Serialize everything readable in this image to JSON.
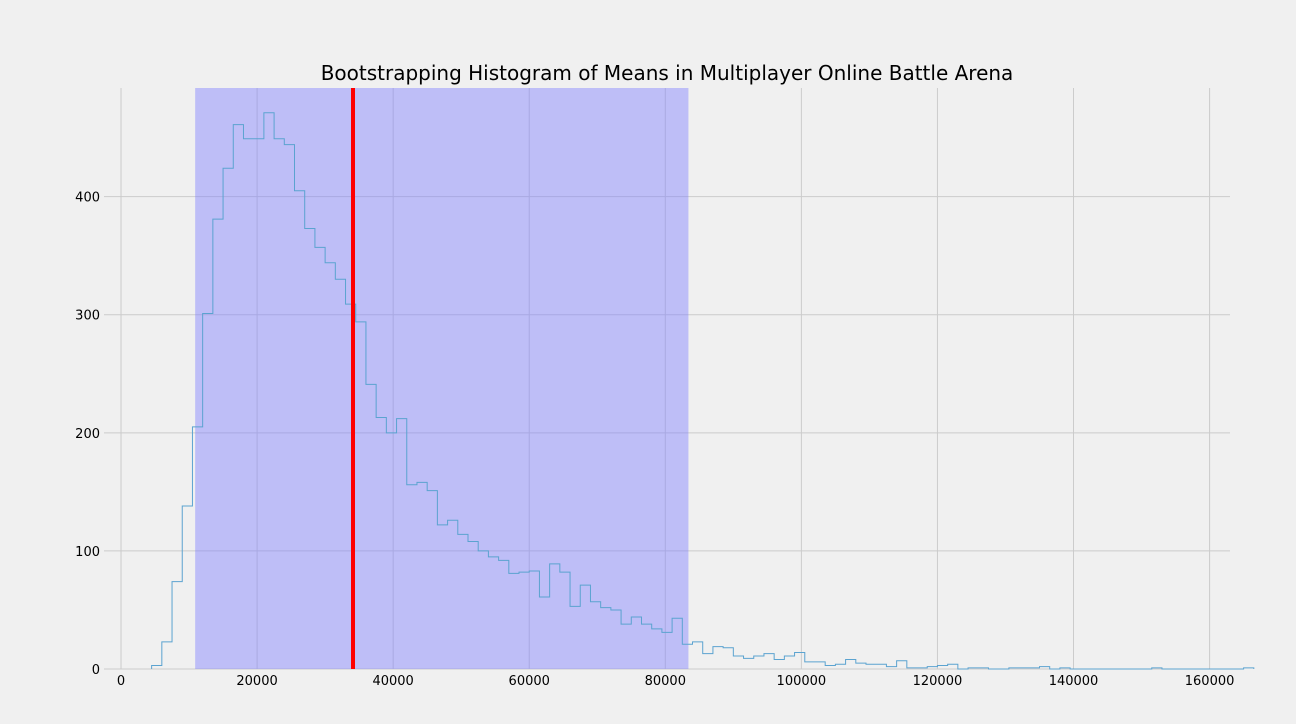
{
  "chart_data": {
    "type": "bar",
    "title": "Bootstrapping Histogram of Means in Multiplayer Online Battle Arena",
    "xlabel": "",
    "ylabel": "",
    "xlim": [
      -2500,
      163000
    ],
    "ylim": [
      0,
      492
    ],
    "xticks": [
      0,
      20000,
      40000,
      60000,
      80000,
      100000,
      120000,
      140000,
      160000
    ],
    "yticks": [
      0,
      100,
      200,
      300,
      400
    ],
    "grid": true,
    "histogram": {
      "bin_start": 4500,
      "bin_width": 1500,
      "step_style": "outline",
      "counts": [
        3,
        23,
        74,
        138,
        205,
        301,
        381,
        424,
        461,
        449,
        449,
        471,
        449,
        444,
        405,
        373,
        357,
        344,
        330,
        309,
        294,
        241,
        213,
        200,
        212,
        156,
        158,
        151,
        122,
        126,
        114,
        108,
        100,
        95,
        92,
        81,
        82,
        83,
        61,
        89,
        82,
        53,
        71,
        57,
        52,
        50,
        38,
        44,
        38,
        34,
        31,
        43,
        21,
        23,
        13,
        19,
        18,
        11,
        9,
        11,
        13,
        8,
        11,
        14,
        6,
        6,
        3,
        4,
        8,
        5,
        4,
        4,
        2,
        7,
        1,
        1,
        2,
        3,
        4,
        0,
        1,
        1,
        0,
        0,
        1,
        1,
        1,
        2,
        0,
        1,
        0,
        0,
        0,
        0,
        0,
        0,
        0,
        0,
        1,
        0,
        0,
        0,
        0,
        0,
        0,
        0,
        0,
        1
      ]
    },
    "confidence_interval": [
      10900,
      83400
    ],
    "mean_line": 34100,
    "colors": {
      "background": "#f0f0f0",
      "grid": "#cbcbcb",
      "histogram_line": "#5ba3d0",
      "interval_fill": "#8080ff",
      "interval_opacity": 0.45,
      "mean_line": "#ff0000"
    }
  }
}
